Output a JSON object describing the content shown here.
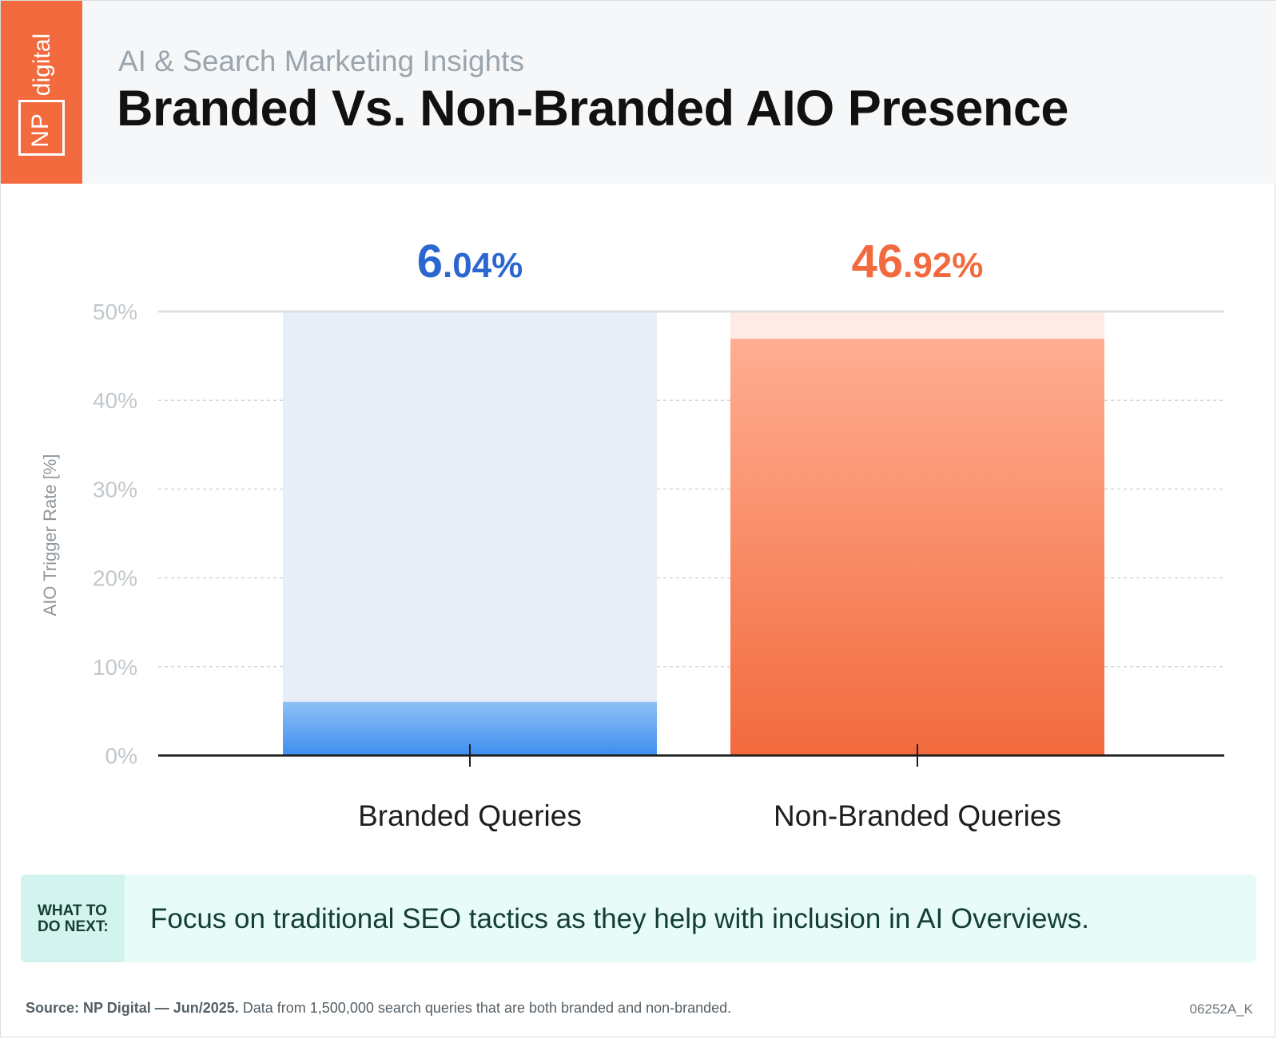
{
  "header": {
    "logo_np": "NP",
    "logo_digital": "digital",
    "subtitle": "AI & Search Marketing Insights",
    "title": "Branded Vs. Non-Branded AIO Presence"
  },
  "chart_data": {
    "type": "bar",
    "ylabel": "AIO Trigger Rate [%]",
    "ylim": [
      0,
      50
    ],
    "y_ticks": [
      "0%",
      "10%",
      "20%",
      "30%",
      "40%",
      "50%"
    ],
    "grid": true,
    "categories": [
      "Branded Queries",
      "Non-Branded Queries"
    ],
    "values": [
      6.04,
      46.92
    ],
    "value_labels": [
      {
        "whole": "6",
        "decimal": ".04%"
      },
      {
        "whole": "46",
        "decimal": ".92%"
      }
    ],
    "colors": {
      "branded_bar": "#3d8ef0",
      "branded_bar_light": "#8fc0f5",
      "branded_track": "#e7eef7",
      "branded_label": "#2b67cf",
      "nonbranded_bar": "#f26a3d",
      "nonbranded_bar_light": "#ffae92",
      "nonbranded_track": "#ffebe6",
      "nonbranded_label": "#f26a3d"
    }
  },
  "callout": {
    "tag": "WHAT TO\nDO NEXT:",
    "text": "Focus on traditional SEO tactics as they help with inclusion in AI Overviews."
  },
  "footer": {
    "source_bold": "Source: NP Digital — Jun/2025.",
    "source_rest": " Data from 1,500,000 search queries that are both branded and non-branded.",
    "code": "06252A_K"
  }
}
